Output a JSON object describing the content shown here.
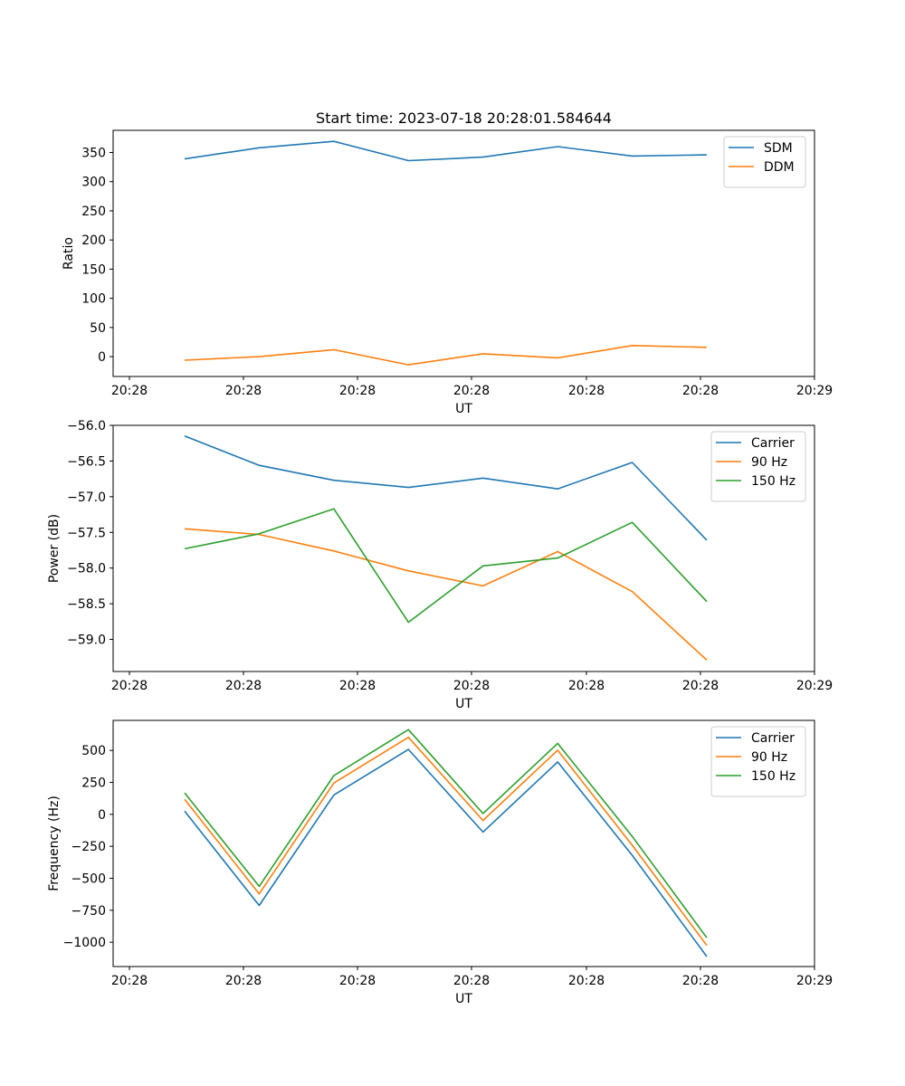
{
  "title": "Start time: 2023-07-18 20:28:01.584644",
  "chart_data": [
    {
      "type": "line",
      "xlabel": "UT",
      "ylabel": "Ratio",
      "x_tick_labels": [
        "20:28",
        "20:28",
        "20:28",
        "20:28",
        "20:28",
        "20:28",
        "20:29"
      ],
      "y_ticks": [
        0,
        50,
        100,
        150,
        200,
        250,
        300,
        350
      ],
      "y_tick_labels": [
        "0",
        "50",
        "100",
        "150",
        "200",
        "250",
        "300",
        "350"
      ],
      "ylim": [
        -34,
        388
      ],
      "x": [
        1,
        2,
        3,
        4,
        5,
        6,
        7,
        8
      ],
      "legend_position": "top-right",
      "series": [
        {
          "name": "SDM",
          "color": "#1f77b4",
          "values": [
            339,
            358,
            369,
            336,
            342,
            360,
            344,
            346
          ]
        },
        {
          "name": "DDM",
          "color": "#ff7f0e",
          "values": [
            -6,
            0,
            12,
            -14,
            5,
            -2,
            19,
            16
          ]
        }
      ]
    },
    {
      "type": "line",
      "xlabel": "UT",
      "ylabel": "Power (dB)",
      "x_tick_labels": [
        "20:28",
        "20:28",
        "20:28",
        "20:28",
        "20:28",
        "20:28",
        "20:29"
      ],
      "y_ticks": [
        -56.0,
        -56.5,
        -57.0,
        -57.5,
        -58.0,
        -58.5,
        -59.0
      ],
      "y_tick_labels": [
        "−56.0",
        "−56.5",
        "−57.0",
        "−57.5",
        "−58.0",
        "−58.5",
        "−59.0"
      ],
      "ylim": [
        -59.45,
        -56.0
      ],
      "x": [
        1,
        2,
        3,
        4,
        5,
        6,
        7,
        8
      ],
      "legend_position": "top-right",
      "series": [
        {
          "name": "Carrier",
          "color": "#1f77b4",
          "values": [
            -56.15,
            -56.56,
            -56.77,
            -56.87,
            -56.74,
            -56.89,
            -56.52,
            -57.61
          ]
        },
        {
          "name": "90 Hz",
          "color": "#ff7f0e",
          "values": [
            -57.45,
            -57.53,
            -57.76,
            -58.04,
            -58.25,
            -57.77,
            -58.33,
            -59.29
          ]
        },
        {
          "name": "150 Hz",
          "color": "#2ca02c",
          "values": [
            -57.73,
            -57.52,
            -57.17,
            -58.76,
            -57.97,
            -57.86,
            -57.36,
            -58.47
          ]
        }
      ]
    },
    {
      "type": "line",
      "xlabel": "UT",
      "ylabel": "Frequency (Hz)",
      "x_tick_labels": [
        "20:28",
        "20:28",
        "20:28",
        "20:28",
        "20:28",
        "20:28",
        "20:29"
      ],
      "y_ticks": [
        500,
        250,
        0,
        -250,
        -500,
        -750,
        -1000
      ],
      "y_tick_labels": [
        "500",
        "250",
        "0",
        "−250",
        "−500",
        "−750",
        "−1000"
      ],
      "ylim": [
        -1190,
        735
      ],
      "x": [
        1,
        2,
        3,
        4,
        5,
        6,
        7,
        8
      ],
      "legend_position": "top-right",
      "series": [
        {
          "name": "Carrier",
          "color": "#1f77b4",
          "values": [
            25,
            -712,
            152,
            508,
            -138,
            410,
            -320,
            -1112
          ]
        },
        {
          "name": "90 Hz",
          "color": "#ff7f0e",
          "values": [
            118,
            -622,
            245,
            603,
            -48,
            502,
            -242,
            -1025
          ]
        },
        {
          "name": "150 Hz",
          "color": "#2ca02c",
          "values": [
            168,
            -563,
            303,
            663,
            7,
            555,
            -172,
            -965
          ]
        }
      ]
    }
  ]
}
